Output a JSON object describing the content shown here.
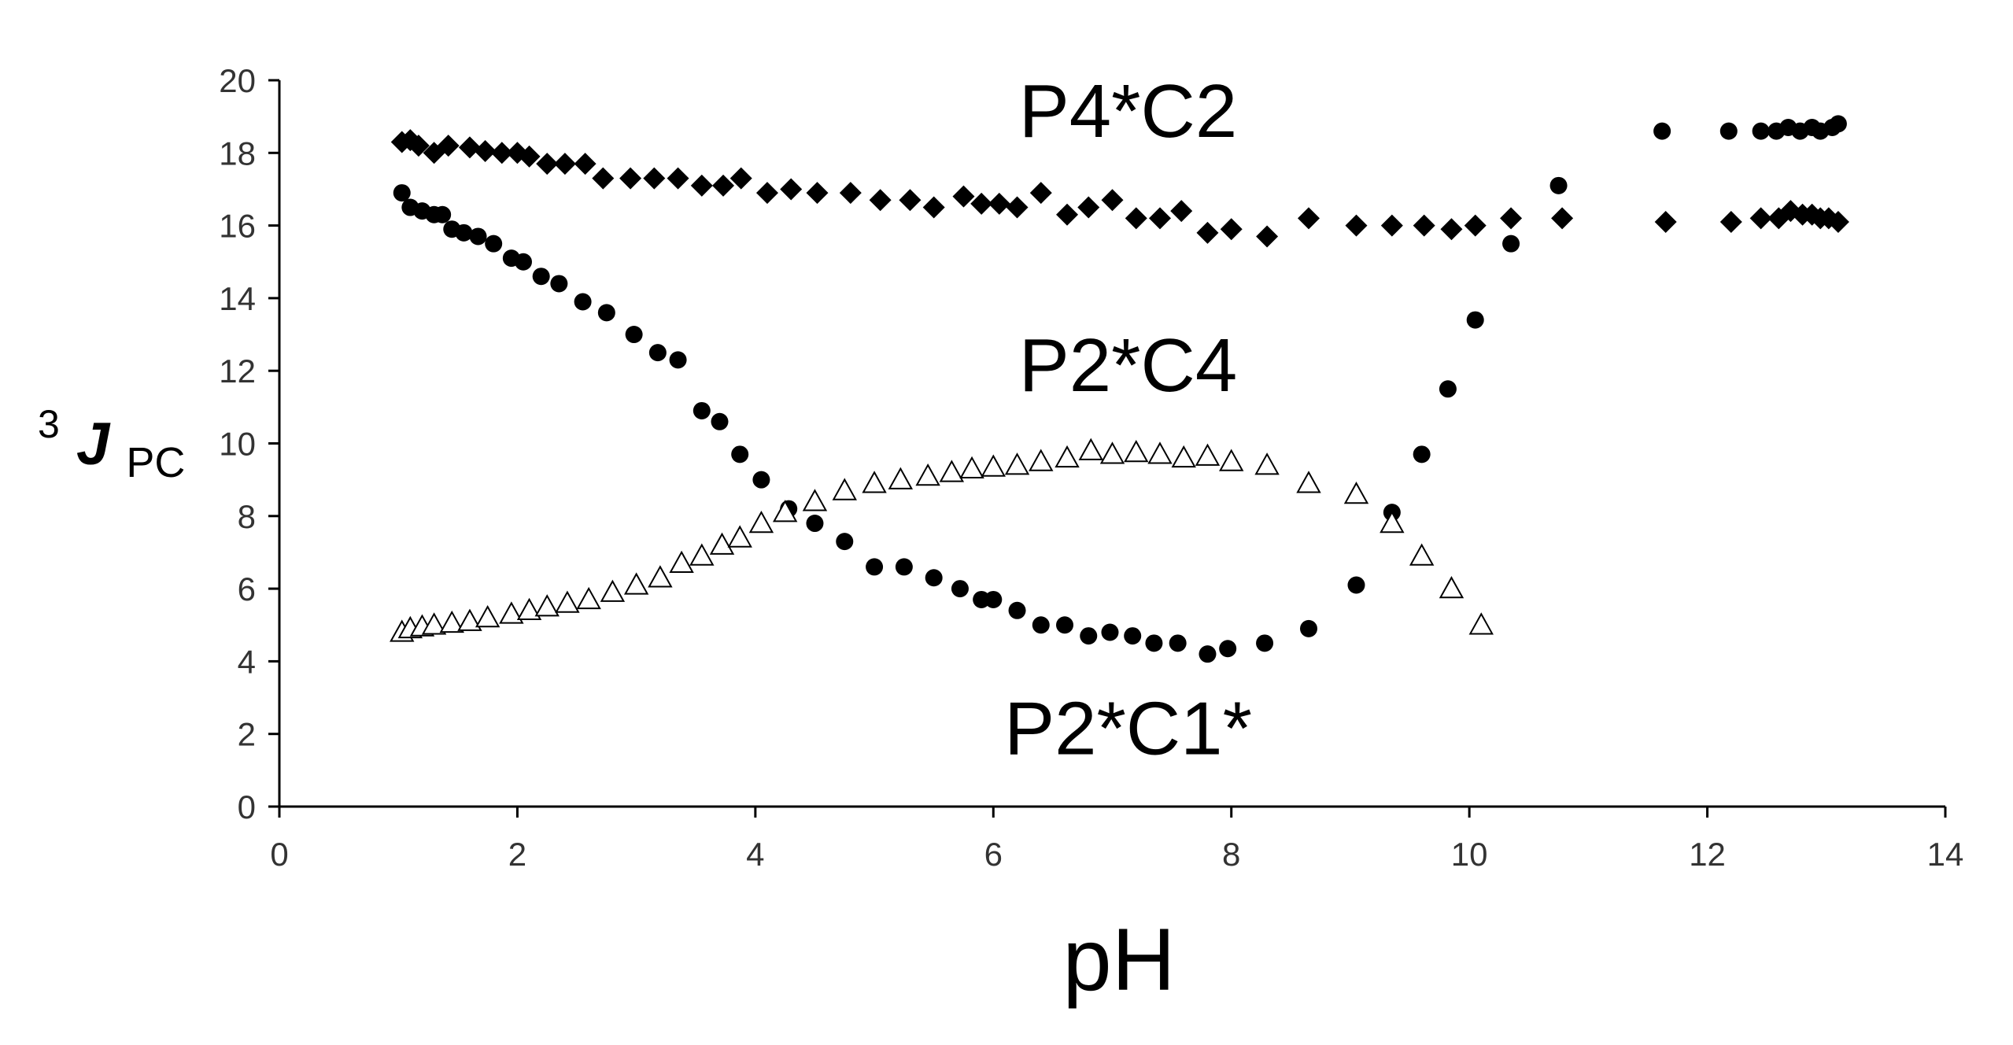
{
  "chart_data": {
    "type": "scatter",
    "title": "",
    "xlabel": "pH",
    "ylabel": {
      "superscript": "3",
      "main": "J",
      "subscript": "PC"
    },
    "xlim": [
      0,
      14
    ],
    "ylim": [
      0,
      20
    ],
    "xticks": [
      0,
      2,
      4,
      6,
      8,
      10,
      12,
      14
    ],
    "yticks": [
      0,
      2,
      4,
      6,
      8,
      10,
      12,
      14,
      16,
      18,
      20
    ],
    "grid": false,
    "legend": "none",
    "annotations": [
      {
        "name": "label-p4c2",
        "text": "P4*C2",
        "x": 7.0,
        "y": 19.2
      },
      {
        "name": "label-p2c4",
        "text": "P2*C4",
        "x": 7.0,
        "y": 12.2
      },
      {
        "name": "label-p2c1",
        "text": "P2*C1*",
        "x": 7.0,
        "y": 2.2
      }
    ],
    "series": [
      {
        "name": "P4*C2",
        "marker": "diamond",
        "color": "#000000",
        "points": [
          [
            1.03,
            18.3
          ],
          [
            1.1,
            18.35
          ],
          [
            1.17,
            18.2
          ],
          [
            1.3,
            18.0
          ],
          [
            1.42,
            18.2
          ],
          [
            1.6,
            18.15
          ],
          [
            1.73,
            18.05
          ],
          [
            1.87,
            18.0
          ],
          [
            2.0,
            18.0
          ],
          [
            2.1,
            17.9
          ],
          [
            2.25,
            17.7
          ],
          [
            2.4,
            17.7
          ],
          [
            2.57,
            17.7
          ],
          [
            2.72,
            17.3
          ],
          [
            2.95,
            17.3
          ],
          [
            3.15,
            17.3
          ],
          [
            3.35,
            17.3
          ],
          [
            3.55,
            17.1
          ],
          [
            3.73,
            17.1
          ],
          [
            3.88,
            17.3
          ],
          [
            4.1,
            16.9
          ],
          [
            4.3,
            17.0
          ],
          [
            4.52,
            16.9
          ],
          [
            4.8,
            16.9
          ],
          [
            5.05,
            16.7
          ],
          [
            5.3,
            16.7
          ],
          [
            5.5,
            16.5
          ],
          [
            5.75,
            16.8
          ],
          [
            5.9,
            16.6
          ],
          [
            6.05,
            16.6
          ],
          [
            6.2,
            16.5
          ],
          [
            6.4,
            16.9
          ],
          [
            6.62,
            16.3
          ],
          [
            6.8,
            16.5
          ],
          [
            7.0,
            16.7
          ],
          [
            7.2,
            16.2
          ],
          [
            7.4,
            16.2
          ],
          [
            7.58,
            16.4
          ],
          [
            7.8,
            15.8
          ],
          [
            8.0,
            15.9
          ],
          [
            8.3,
            15.7
          ],
          [
            8.65,
            16.2
          ],
          [
            9.05,
            16.0
          ],
          [
            9.35,
            16.0
          ],
          [
            9.62,
            16.0
          ],
          [
            9.85,
            15.9
          ],
          [
            10.05,
            16.0
          ],
          [
            10.35,
            16.2
          ],
          [
            10.78,
            16.2
          ],
          [
            11.65,
            16.1
          ],
          [
            12.2,
            16.1
          ],
          [
            12.45,
            16.2
          ],
          [
            12.6,
            16.2
          ],
          [
            12.7,
            16.4
          ],
          [
            12.8,
            16.3
          ],
          [
            12.88,
            16.3
          ],
          [
            12.95,
            16.2
          ],
          [
            13.02,
            16.2
          ],
          [
            13.1,
            16.1
          ]
        ]
      },
      {
        "name": "P2*C1*",
        "marker": "circle",
        "color": "#000000",
        "points": [
          [
            1.03,
            16.9
          ],
          [
            1.1,
            16.5
          ],
          [
            1.2,
            16.4
          ],
          [
            1.3,
            16.3
          ],
          [
            1.37,
            16.3
          ],
          [
            1.45,
            15.9
          ],
          [
            1.55,
            15.8
          ],
          [
            1.67,
            15.7
          ],
          [
            1.8,
            15.5
          ],
          [
            1.95,
            15.1
          ],
          [
            2.05,
            15.0
          ],
          [
            2.2,
            14.6
          ],
          [
            2.35,
            14.4
          ],
          [
            2.55,
            13.9
          ],
          [
            2.75,
            13.6
          ],
          [
            2.98,
            13.0
          ],
          [
            3.18,
            12.5
          ],
          [
            3.35,
            12.3
          ],
          [
            3.55,
            10.9
          ],
          [
            3.7,
            10.6
          ],
          [
            3.87,
            9.7
          ],
          [
            4.05,
            9.0
          ],
          [
            4.28,
            8.2
          ],
          [
            4.5,
            7.8
          ],
          [
            4.75,
            7.3
          ],
          [
            5.0,
            6.6
          ],
          [
            5.25,
            6.6
          ],
          [
            5.5,
            6.3
          ],
          [
            5.72,
            6.0
          ],
          [
            5.9,
            5.7
          ],
          [
            6.0,
            5.7
          ],
          [
            6.2,
            5.4
          ],
          [
            6.4,
            5.0
          ],
          [
            6.6,
            5.0
          ],
          [
            6.8,
            4.7
          ],
          [
            6.98,
            4.8
          ],
          [
            7.17,
            4.7
          ],
          [
            7.35,
            4.5
          ],
          [
            7.55,
            4.5
          ],
          [
            7.8,
            4.2
          ],
          [
            7.97,
            4.35
          ],
          [
            8.28,
            4.5
          ],
          [
            8.65,
            4.9
          ],
          [
            9.05,
            6.1
          ],
          [
            9.35,
            8.1
          ],
          [
            9.6,
            9.7
          ],
          [
            9.82,
            11.5
          ],
          [
            10.05,
            13.4
          ],
          [
            10.35,
            15.5
          ],
          [
            10.75,
            17.1
          ],
          [
            11.62,
            18.6
          ],
          [
            12.18,
            18.6
          ],
          [
            12.45,
            18.6
          ],
          [
            12.58,
            18.6
          ],
          [
            12.68,
            18.7
          ],
          [
            12.78,
            18.6
          ],
          [
            12.88,
            18.7
          ],
          [
            12.95,
            18.6
          ],
          [
            13.05,
            18.7
          ],
          [
            13.1,
            18.8
          ]
        ]
      },
      {
        "name": "P2*C4",
        "marker": "triangle-open",
        "color": "#000000",
        "points": [
          [
            1.03,
            4.8
          ],
          [
            1.1,
            4.9
          ],
          [
            1.2,
            4.95
          ],
          [
            1.3,
            5.0
          ],
          [
            1.45,
            5.05
          ],
          [
            1.6,
            5.1
          ],
          [
            1.75,
            5.2
          ],
          [
            1.95,
            5.3
          ],
          [
            2.1,
            5.4
          ],
          [
            2.25,
            5.5
          ],
          [
            2.42,
            5.6
          ],
          [
            2.6,
            5.7
          ],
          [
            2.8,
            5.9
          ],
          [
            3.0,
            6.1
          ],
          [
            3.2,
            6.3
          ],
          [
            3.38,
            6.7
          ],
          [
            3.55,
            6.9
          ],
          [
            3.72,
            7.2
          ],
          [
            3.87,
            7.4
          ],
          [
            4.05,
            7.8
          ],
          [
            4.25,
            8.1
          ],
          [
            4.5,
            8.4
          ],
          [
            4.75,
            8.7
          ],
          [
            5.0,
            8.9
          ],
          [
            5.22,
            9.0
          ],
          [
            5.45,
            9.1
          ],
          [
            5.65,
            9.2
          ],
          [
            5.82,
            9.3
          ],
          [
            6.0,
            9.35
          ],
          [
            6.2,
            9.4
          ],
          [
            6.4,
            9.5
          ],
          [
            6.62,
            9.6
          ],
          [
            6.82,
            9.8
          ],
          [
            7.0,
            9.7
          ],
          [
            7.2,
            9.75
          ],
          [
            7.4,
            9.7
          ],
          [
            7.6,
            9.6
          ],
          [
            7.8,
            9.65
          ],
          [
            8.0,
            9.5
          ],
          [
            8.3,
            9.4
          ],
          [
            8.65,
            8.9
          ],
          [
            9.05,
            8.6
          ],
          [
            9.35,
            7.8
          ],
          [
            9.6,
            6.9
          ],
          [
            9.85,
            6.0
          ],
          [
            10.1,
            5.0
          ]
        ]
      }
    ]
  }
}
